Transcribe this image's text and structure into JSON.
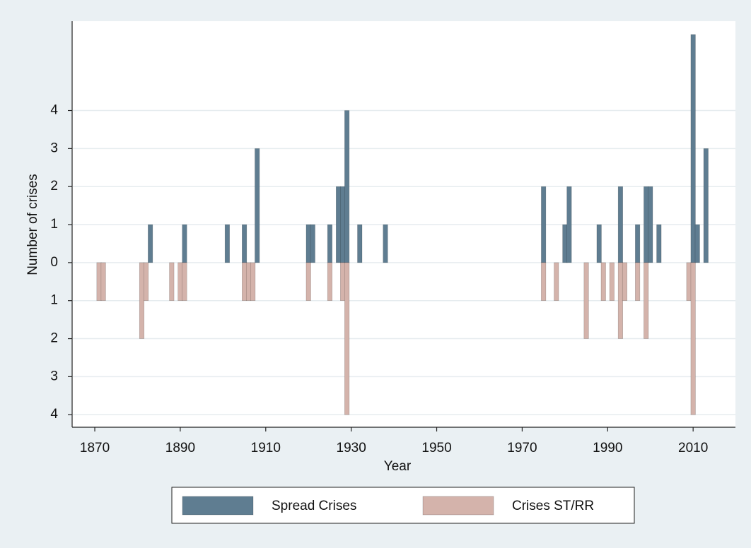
{
  "chart_data": {
    "type": "bar",
    "xlabel": "Year",
    "ylabel": "Number of crises",
    "xlim": [
      1864.7,
      2019.9
    ],
    "xticks": [
      1870,
      1890,
      1910,
      1930,
      1950,
      1970,
      1990,
      2010
    ],
    "ylim": [
      -4.33,
      6.35
    ],
    "yticks": [
      {
        "value": -4,
        "label": "4"
      },
      {
        "value": -3,
        "label": "3"
      },
      {
        "value": -2,
        "label": "2"
      },
      {
        "value": -1,
        "label": "1"
      },
      0,
      1,
      2,
      3,
      4
    ],
    "grid": true,
    "legend": "bottom",
    "series": [
      {
        "name": "Spread Crises",
        "color": "#5f7d91",
        "x": [
          1883,
          1891,
          1901,
          1905,
          1908,
          1920,
          1921,
          1925,
          1927,
          1928,
          1929,
          1932,
          1938,
          1975,
          1980,
          1981,
          1988,
          1993,
          1997,
          1999,
          2000,
          2002,
          2010,
          2011,
          2013
        ],
        "values": [
          1,
          1,
          1,
          1,
          3,
          1,
          1,
          1,
          2,
          2,
          4,
          1,
          1,
          2,
          1,
          2,
          1,
          2,
          1,
          2,
          2,
          1,
          6,
          1,
          3
        ]
      },
      {
        "name": "Crises ST/RR",
        "color": "#d4b3ab",
        "x": [
          1871,
          1872,
          1881,
          1882,
          1888,
          1890,
          1891,
          1905,
          1906,
          1907,
          1920,
          1925,
          1928,
          1929,
          1975,
          1978,
          1985,
          1989,
          1991,
          1993,
          1994,
          1997,
          1999,
          2009,
          2010
        ],
        "values": [
          -1,
          -1,
          -2,
          -1,
          -1,
          -1,
          -1,
          -1,
          -1,
          -1,
          -1,
          -1,
          -1,
          -4,
          -1,
          -1,
          -2,
          -1,
          -1,
          -2,
          -1,
          -1,
          -2,
          -1,
          -4
        ]
      }
    ]
  }
}
